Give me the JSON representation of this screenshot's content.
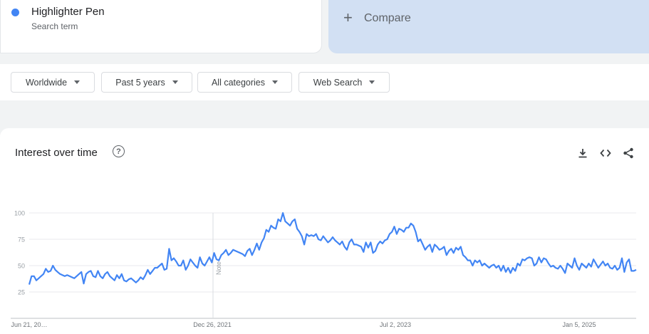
{
  "search_term": {
    "name": "Highlighter Pen",
    "sub": "Search term",
    "color": "#4285f4"
  },
  "compare": {
    "label": "Compare"
  },
  "filters": [
    {
      "label": "Worldwide"
    },
    {
      "label": "Past 5 years"
    },
    {
      "label": "All categories"
    },
    {
      "label": "Web Search"
    }
  ],
  "chart": {
    "title": "Interest over time",
    "tools": [
      "download-icon",
      "embed-code-icon",
      "share-icon"
    ]
  },
  "chart_data": {
    "type": "line",
    "ylim": [
      0,
      100
    ],
    "yticks": [
      25,
      50,
      75,
      100
    ],
    "grid": true,
    "xtick_labels": [
      "Jun 21, 20…",
      "Dec 26, 2021",
      "Jul 2, 2023",
      "Jan 5, 2025"
    ],
    "annotation": "Note",
    "line_color": "#4285f4",
    "series": [
      {
        "values": [
          32,
          40,
          40,
          36,
          38,
          40,
          42,
          47,
          44,
          45,
          50,
          46,
          44,
          42,
          41,
          40,
          41,
          40,
          39,
          38,
          40,
          42,
          44,
          33,
          42,
          44,
          45,
          40,
          39,
          45,
          40,
          38,
          42,
          44,
          40,
          38,
          36,
          41,
          38,
          42,
          36,
          35,
          37,
          38,
          36,
          34,
          36,
          39,
          37,
          41,
          46,
          42,
          45,
          48,
          48,
          50,
          52,
          46,
          47,
          66,
          55,
          57,
          54,
          50,
          50,
          55,
          46,
          50,
          56,
          53,
          50,
          48,
          58,
          52,
          50,
          54,
          58,
          53,
          62,
          56,
          55,
          60,
          62,
          65,
          60,
          62,
          65,
          64,
          63,
          62,
          61,
          59,
          64,
          66,
          60,
          65,
          71,
          65,
          72,
          76,
          84,
          82,
          88,
          86,
          85,
          94,
          92,
          100,
          92,
          90,
          88,
          92,
          94,
          85,
          82,
          78,
          70,
          80,
          78,
          79,
          78,
          80,
          75,
          74,
          78,
          75,
          72,
          74,
          77,
          74,
          72,
          70,
          73,
          68,
          65,
          72,
          75,
          70,
          70,
          69,
          68,
          63,
          72,
          67,
          72,
          62,
          64,
          70,
          73,
          71,
          74,
          75,
          80,
          82,
          87,
          80,
          85,
          84,
          82,
          86,
          86,
          90,
          88,
          82,
          73,
          75,
          70,
          65,
          68,
          70,
          63,
          70,
          68,
          65,
          66,
          68,
          60,
          64,
          66,
          62,
          67,
          65,
          68,
          60,
          58,
          55,
          55,
          50,
          55,
          53,
          55,
          50,
          52,
          50,
          48,
          50,
          51,
          48,
          50,
          45,
          50,
          44,
          48,
          43,
          48,
          45,
          52,
          50,
          56,
          55,
          57,
          58,
          57,
          50,
          52,
          58,
          53,
          57,
          56,
          52,
          49,
          50,
          48,
          47,
          50,
          47,
          43,
          52,
          50,
          48,
          57,
          50,
          46,
          52,
          50,
          48,
          52,
          49,
          56,
          52,
          48,
          51,
          54,
          50,
          52,
          48,
          47,
          50,
          46,
          48,
          57,
          44,
          53,
          56,
          45,
          45,
          46
        ]
      }
    ]
  }
}
